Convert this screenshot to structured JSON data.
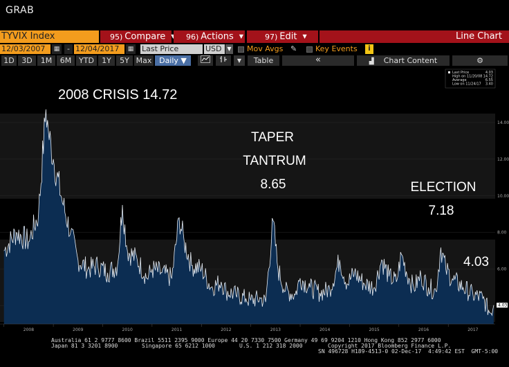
{
  "window": {
    "title": "GRAB"
  },
  "toolbar": {
    "ticker": "TYVIX Index",
    "compare_num": "95)",
    "compare_label": "Compare",
    "actions_num": "96)",
    "actions_label": "Actions",
    "edit_num": "97)",
    "edit_label": "Edit",
    "view_label": "Line Chart"
  },
  "controls": {
    "start_date": "12/03/2007",
    "end_date": "12/04/2017",
    "dash": "-",
    "field": "Last Price",
    "currency": "USD",
    "mov_avgs": "Mov Avgs",
    "key_events": "Key Events",
    "info": "i"
  },
  "periods": {
    "items": [
      "1D",
      "3D",
      "1M",
      "6M",
      "YTD",
      "1Y",
      "5Y",
      "Max"
    ],
    "frequency": "Daily",
    "table_label": "Table",
    "collapse": "«",
    "chart_content": "Chart Content"
  },
  "icons": {
    "calendar": "calendar-icon",
    "pen": "pen-icon",
    "settings": "gear-icon",
    "chart_type": "line-chart-icon",
    "chart_content": "bar-chart-icon"
  },
  "colors": {
    "ticker_bg": "#f39c1d",
    "menu_red": "#a3121a",
    "area_fill": "#0c2d52",
    "line": "#e8eef5",
    "daily_active": "#4a6fa5"
  },
  "chart_data": {
    "type": "area",
    "ylim": [
      3,
      16
    ],
    "y_ticks": [
      "4.00",
      "6.00",
      "8.00",
      "10.00",
      "12.00",
      "14.00"
    ],
    "x_labels": [
      "2008",
      "2009",
      "2010",
      "2011",
      "2012",
      "2013",
      "2014",
      "2015",
      "2016",
      "2017"
    ],
    "current_value_label": "4.03",
    "legend": [
      {
        "label": "Last Price",
        "value": "4.03"
      },
      {
        "label": "High on 11/20/08",
        "value": "14.72"
      },
      {
        "label": "Average",
        "value": "6.55"
      },
      {
        "label": "Low on 11/24/17",
        "value": "3.40"
      }
    ],
    "annotations": [
      {
        "lines": [
          "2008 CRISIS 14.72"
        ]
      },
      {
        "lines": [
          "TAPER",
          "TANTRUM",
          "8.65"
        ]
      },
      {
        "lines": [
          "ELECTION",
          "7.18"
        ]
      },
      {
        "lines": [
          "4.03"
        ]
      }
    ],
    "series": [
      {
        "x": [
          2008.0,
          2008.25,
          2008.5,
          2008.7,
          2008.85,
          2008.9,
          2009.0,
          2009.2,
          2009.35,
          2009.5,
          2009.7,
          2009.9,
          2010.1,
          2010.3,
          2010.4,
          2010.5,
          2010.7,
          2010.9,
          2011.0,
          2011.2,
          2011.4,
          2011.55,
          2011.65,
          2011.8,
          2012.0,
          2012.2,
          2012.4,
          2012.5,
          2012.7,
          2012.9,
          2013.0,
          2013.2,
          2013.3,
          2013.45,
          2013.55,
          2013.7,
          2013.9,
          2014.0,
          2014.2,
          2014.4,
          2014.6,
          2014.8,
          2014.95,
          2015.1,
          2015.3,
          2015.5,
          2015.65,
          2015.8,
          2015.95,
          2016.05,
          2016.2,
          2016.3,
          2016.45,
          2016.6,
          2016.75,
          2016.85,
          2016.95,
          2017.1,
          2017.3,
          2017.5,
          2017.7,
          2017.85,
          2017.92
        ],
        "y": [
          7.0,
          8.0,
          7.5,
          9.0,
          14.72,
          13.5,
          12.0,
          9.5,
          8.0,
          6.5,
          6.0,
          6.2,
          5.8,
          6.2,
          9.5,
          7.0,
          6.5,
          5.5,
          6.0,
          5.8,
          5.5,
          8.8,
          7.5,
          6.2,
          6.0,
          5.0,
          5.3,
          4.8,
          4.6,
          4.4,
          4.3,
          4.4,
          4.2,
          8.65,
          6.0,
          4.8,
          4.6,
          5.5,
          5.0,
          4.7,
          4.9,
          6.5,
          5.2,
          5.8,
          5.2,
          5.0,
          6.5,
          5.6,
          5.3,
          6.8,
          5.5,
          5.0,
          5.6,
          5.0,
          4.8,
          7.18,
          6.0,
          5.4,
          5.0,
          4.6,
          4.4,
          3.6,
          4.03
        ]
      }
    ]
  },
  "footer": {
    "line1": "Australia 61 2 9777 8600 Brazil 5511 2395 9000 Europe 44 20 7330 7500 Germany 49 69 9204 1210 Hong Kong 852 2977 6000",
    "line2a": "Japan 81 3 3201 8900",
    "line2b": "Singapore 65 6212 1000",
    "line2c": "U.S. 1 212 318 2000",
    "line2d": "Copyright 2017 Bloomberg Finance L.P.",
    "line3": "SN 496728 H189-4513-0 02-Dec-17  4:49:42 EST  GMT-5:00"
  }
}
